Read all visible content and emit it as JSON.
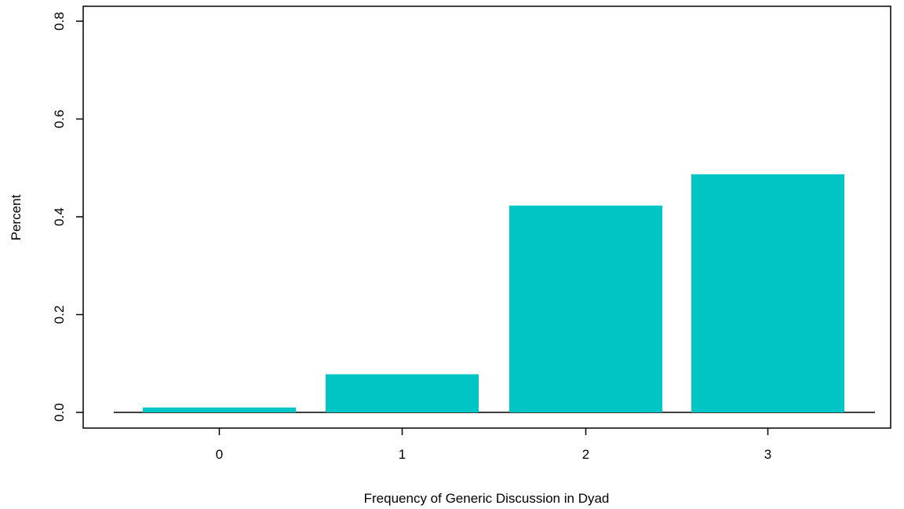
{
  "chart_data": {
    "type": "bar",
    "title": "",
    "xlabel": "Frequency of Generic Discussion in Dyad",
    "ylabel": "Percent",
    "categories": [
      "0",
      "1",
      "2",
      "3"
    ],
    "values": [
      0.01,
      0.078,
      0.423,
      0.487
    ],
    "ylim": [
      0,
      0.8
    ],
    "yticks": [
      "0.0",
      "0.2",
      "0.4",
      "0.6",
      "0.8"
    ],
    "bar_color": "#00C5C5",
    "grid": false,
    "legend": "none"
  }
}
